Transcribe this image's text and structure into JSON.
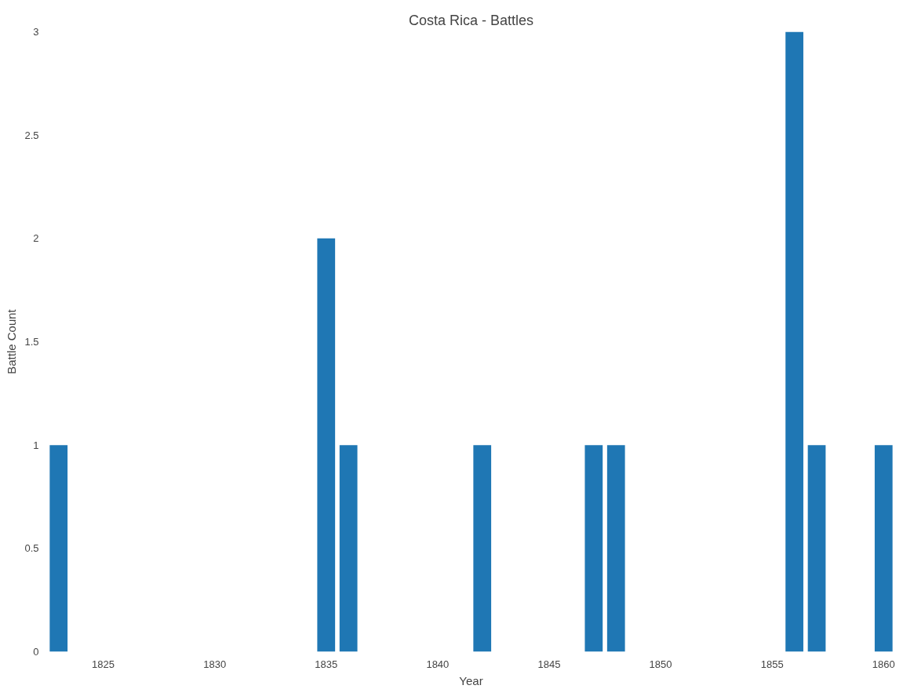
{
  "chart_data": {
    "type": "bar",
    "title": "Costa Rica - Battles",
    "xlabel": "Year",
    "ylabel": "Battle Count",
    "x": [
      1823,
      1835,
      1836,
      1842,
      1847,
      1848,
      1856,
      1857,
      1860
    ],
    "values": [
      1,
      2,
      1,
      1,
      1,
      1,
      3,
      1,
      1
    ],
    "color": "#1f77b4",
    "xlim": [
      1822.5,
      1860.5
    ],
    "ylim": [
      0,
      3
    ],
    "xticks": [
      1825,
      1830,
      1835,
      1840,
      1845,
      1850,
      1855,
      1860
    ],
    "yticks": [
      0,
      0.5,
      1,
      1.5,
      2,
      2.5,
      3
    ]
  }
}
